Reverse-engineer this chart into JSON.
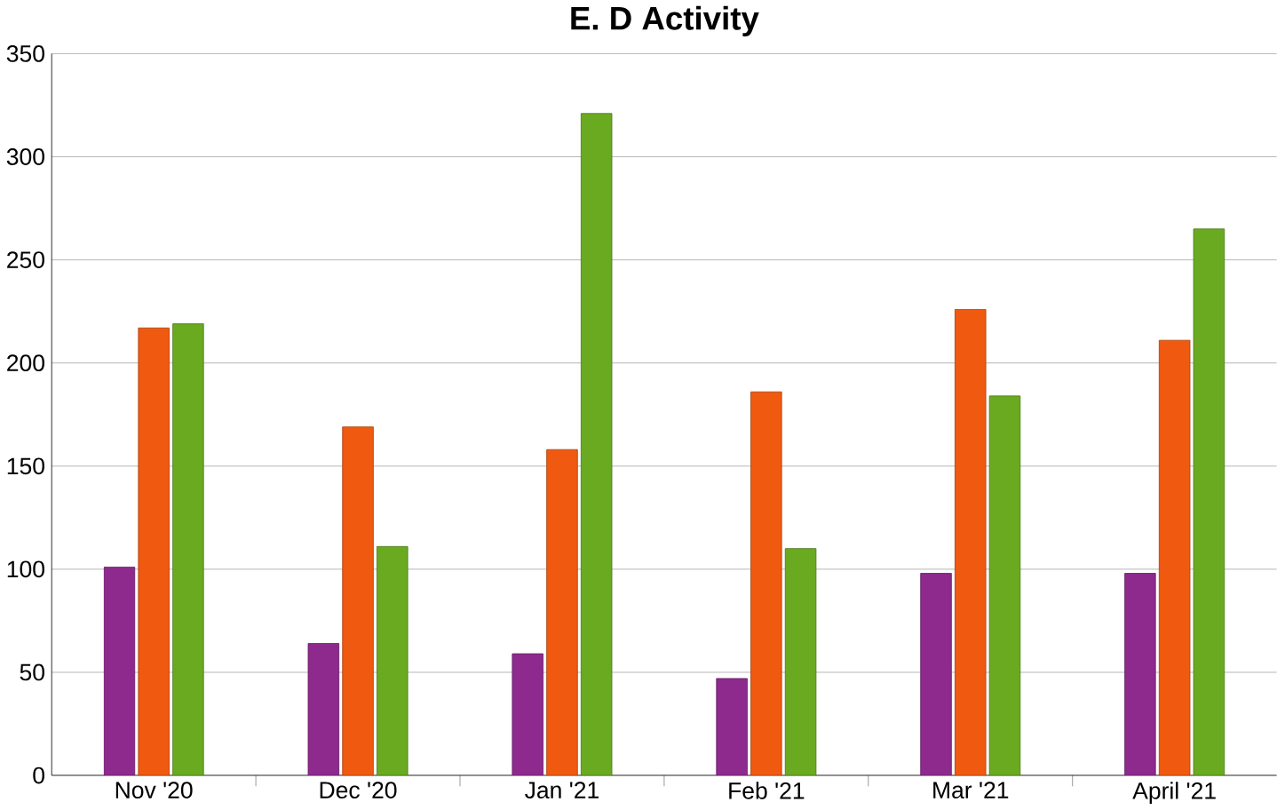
{
  "chart_data": {
    "type": "bar",
    "title": "E. D Activity",
    "categories": [
      "Nov '20",
      "Dec '20",
      "Jan '21",
      "Feb '21",
      "Mar '21",
      "April '21"
    ],
    "series": [
      {
        "color": "#8e2a8e",
        "values": [
          101,
          64,
          59,
          47,
          98,
          98
        ]
      },
      {
        "color": "#f05a10",
        "values": [
          217,
          169,
          158,
          186,
          226,
          211
        ]
      },
      {
        "color": "#6aaa20",
        "values": [
          219,
          111,
          321,
          110,
          184,
          265
        ]
      }
    ],
    "ylim": [
      0,
      350
    ],
    "yticks": [
      0,
      50,
      100,
      150,
      200,
      250,
      300,
      350
    ],
    "grid": "y"
  }
}
